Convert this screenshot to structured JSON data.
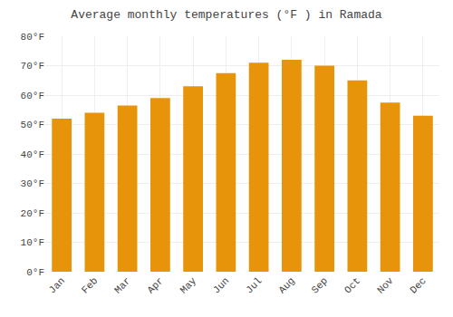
{
  "chart_data": {
    "type": "bar",
    "title": "Average monthly temperatures (°F ) in Ramada",
    "categories": [
      "Jan",
      "Feb",
      "Mar",
      "Apr",
      "May",
      "Jun",
      "Jul",
      "Aug",
      "Sep",
      "Oct",
      "Nov",
      "Dec"
    ],
    "values": [
      52,
      54,
      56.5,
      59,
      63,
      67.5,
      71,
      72,
      70,
      65,
      57.5,
      53
    ],
    "color": "#E8940A",
    "ylim": [
      0,
      80
    ],
    "yticks": [
      {
        "value": 0,
        "label": "0°F"
      },
      {
        "value": 10,
        "label": "10°F"
      },
      {
        "value": 20,
        "label": "20°F"
      },
      {
        "value": 30,
        "label": "30°F"
      },
      {
        "value": 40,
        "label": "40°F"
      },
      {
        "value": 50,
        "label": "50°F"
      },
      {
        "value": 60,
        "label": "60°F"
      },
      {
        "value": 70,
        "label": "70°F"
      },
      {
        "value": 80,
        "label": "80°F"
      }
    ],
    "grid": true
  }
}
